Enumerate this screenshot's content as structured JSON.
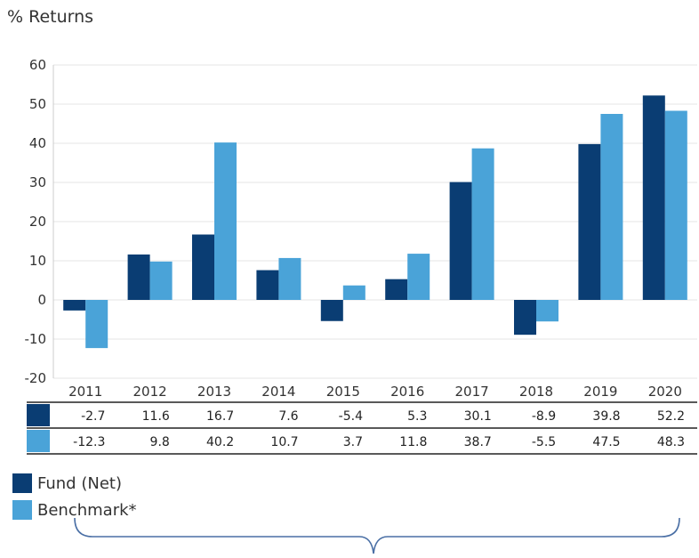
{
  "chart_data": {
    "type": "bar",
    "ylabel": "% Returns",
    "ylim": [
      -20,
      60
    ],
    "yticks": [
      60,
      50,
      40,
      30,
      20,
      10,
      0,
      -10,
      -20
    ],
    "categories": [
      "2011",
      "2012",
      "2013",
      "2014",
      "2015",
      "2016",
      "2017",
      "2018",
      "2019",
      "2020"
    ],
    "series": [
      {
        "name": "Fund (Net)",
        "color": "#0a3d73",
        "values": [
          -2.7,
          11.6,
          16.7,
          7.6,
          -5.4,
          5.3,
          30.1,
          -8.9,
          39.8,
          52.2
        ],
        "labels": [
          "-2.7",
          "11.6",
          "16.7",
          "7.6",
          "-5.4",
          "5.3",
          "30.1",
          "-8.9",
          "39.8",
          "52.2"
        ]
      },
      {
        "name": "Benchmark*",
        "color": "#4aa3d8",
        "values": [
          -12.3,
          9.8,
          40.2,
          10.7,
          3.7,
          11.8,
          38.7,
          -5.5,
          47.5,
          48.3
        ],
        "labels": [
          "-12.3",
          "9.8",
          "40.2",
          "10.7",
          "3.7",
          "11.8",
          "38.7",
          "-5.5",
          "47.5",
          "48.3"
        ]
      }
    ],
    "grid": true,
    "legend_position": "bottom-left"
  },
  "colors": {
    "fund": "#0a3d73",
    "benchmark": "#4aa3d8",
    "bracket": "#4a6fa5"
  }
}
